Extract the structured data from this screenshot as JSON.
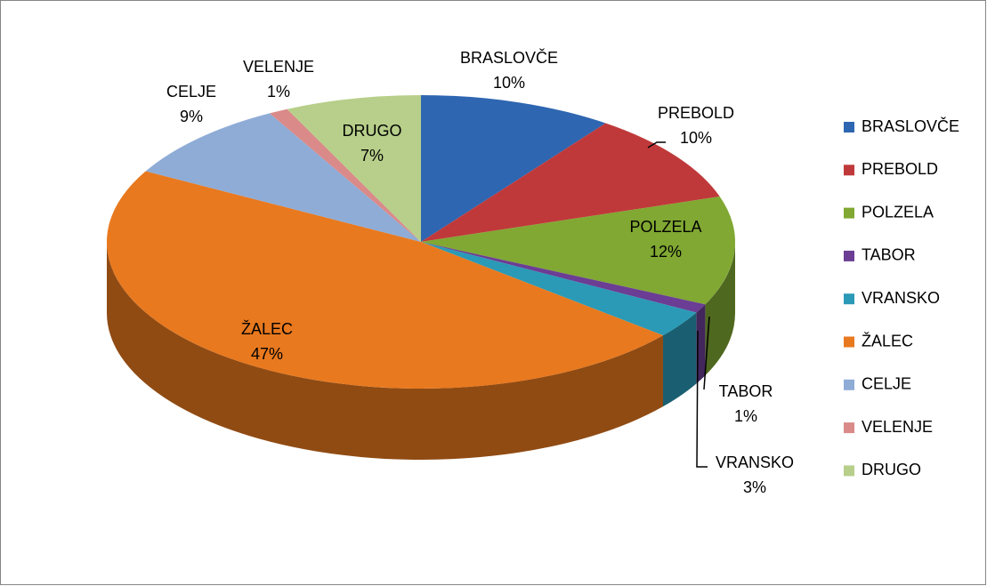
{
  "chart_data": {
    "type": "pie3d",
    "categories": [
      "BRASLOVČE",
      "PREBOLD",
      "POLZELA",
      "TABOR",
      "VRANSKO",
      "ŽALEC",
      "CELJE",
      "VELENJE",
      "DRUGO"
    ],
    "values": [
      10,
      10,
      12,
      1,
      3,
      47,
      9,
      1,
      7
    ],
    "value_labels": [
      "10%",
      "10%",
      "12%",
      "1%",
      "3%",
      "47%",
      "9%",
      "1%",
      "7%"
    ],
    "colors": [
      "#2e66b1",
      "#c0393a",
      "#80a832",
      "#6b3d94",
      "#2a9ab6",
      "#e8791f",
      "#8eacd6",
      "#d98a89",
      "#b7cf8a"
    ],
    "legend": "right"
  }
}
